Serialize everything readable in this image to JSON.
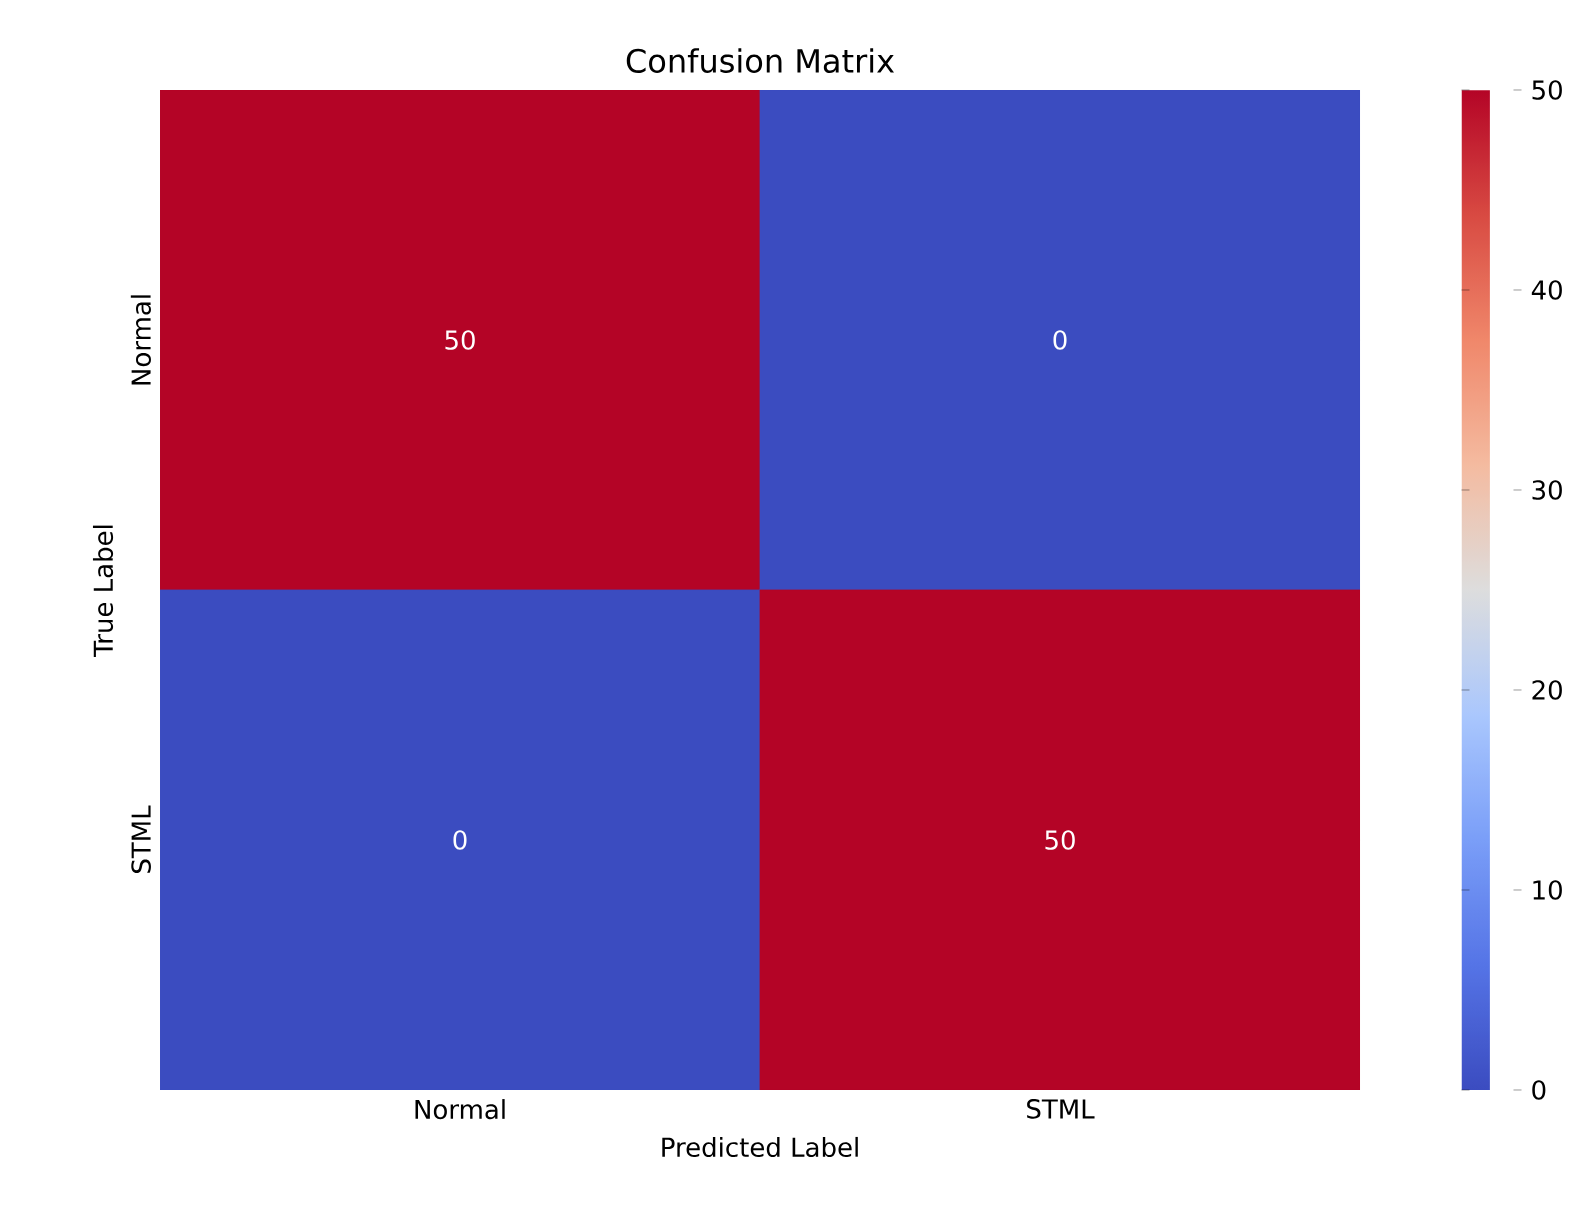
{
  "chart_data": {
    "type": "heatmap",
    "title": "Confusion Matrix",
    "xlabel": "Predicted Label",
    "ylabel": "True Label",
    "categories": [
      "Normal",
      "STML"
    ],
    "y_categories": [
      "Normal",
      "STML"
    ],
    "cells": [
      [
        50,
        0
      ],
      [
        0,
        50
      ]
    ],
    "data_labels": true,
    "clim": [
      0,
      50
    ],
    "cticks": [
      0,
      10,
      20,
      30,
      40,
      50
    ]
  }
}
